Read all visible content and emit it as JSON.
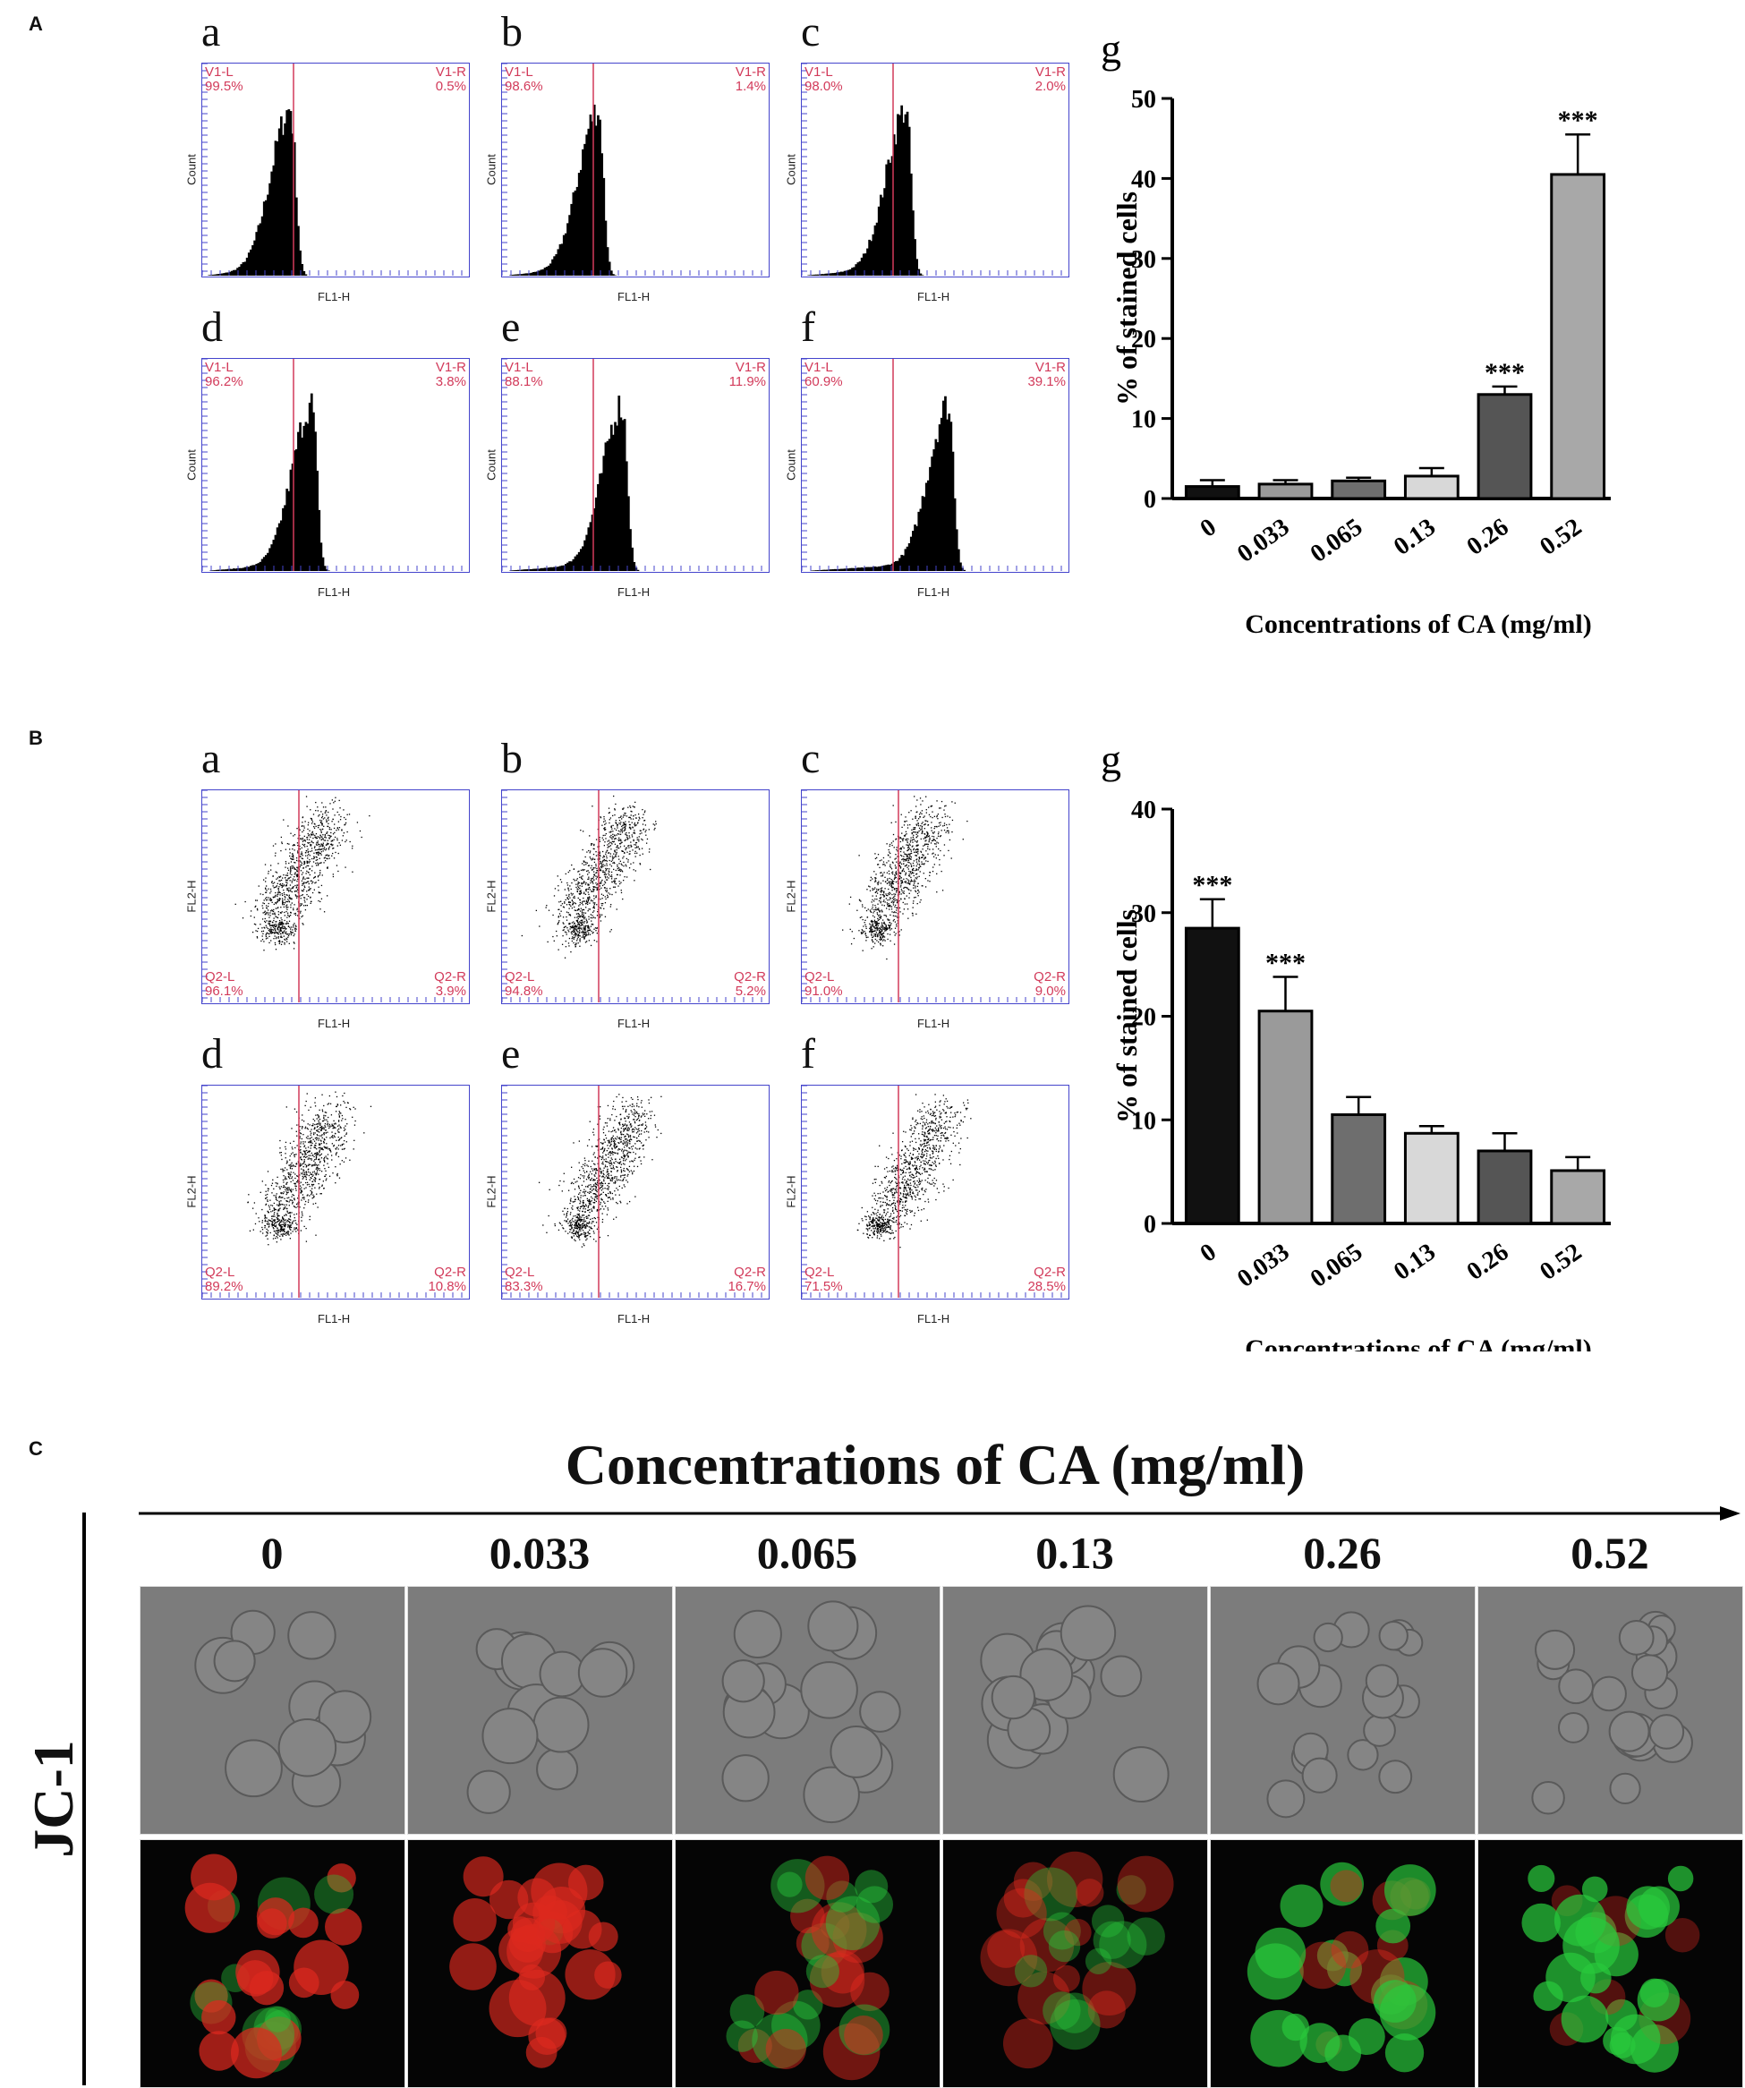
{
  "panels": {
    "A": "A",
    "B": "B",
    "C": "C"
  },
  "panelA": {
    "subplots": [
      {
        "letter": "a",
        "left_label": "V1-L",
        "left_pct": "99.5%",
        "right_label": "V1-R",
        "right_pct": "0.5%",
        "shift": 0.0
      },
      {
        "letter": "b",
        "left_label": "V1-L",
        "left_pct": "98.6%",
        "right_label": "V1-R",
        "right_pct": "1.4%",
        "shift": 0.03
      },
      {
        "letter": "c",
        "left_label": "V1-L",
        "left_pct": "98.0%",
        "right_label": "V1-R",
        "right_pct": "2.0%",
        "shift": 0.06
      },
      {
        "letter": "d",
        "left_label": "V1-L",
        "left_pct": "96.2%",
        "right_label": "V1-R",
        "right_pct": "3.8%",
        "shift": 0.08
      },
      {
        "letter": "e",
        "left_label": "V1-L",
        "left_pct": "88.1%",
        "right_label": "V1-R",
        "right_pct": "11.9%",
        "shift": 0.12
      },
      {
        "letter": "f",
        "left_label": "V1-L",
        "left_pct": "60.9%",
        "right_label": "V1-R",
        "right_pct": "39.1%",
        "shift": 0.22
      }
    ],
    "ylabel": "Count",
    "xlabel": "FL1-H"
  },
  "panelB": {
    "subplots": [
      {
        "letter": "a",
        "left_label": "Q2-L",
        "left_pct": "96.1%",
        "right_label": "Q2-R",
        "right_pct": "3.9%"
      },
      {
        "letter": "b",
        "left_label": "Q2-L",
        "left_pct": "94.8%",
        "right_label": "Q2-R",
        "right_pct": "5.2%"
      },
      {
        "letter": "c",
        "left_label": "Q2-L",
        "left_pct": "91.0%",
        "right_label": "Q2-R",
        "right_pct": "9.0%"
      },
      {
        "letter": "d",
        "left_label": "Q2-L",
        "left_pct": "89.2%",
        "right_label": "Q2-R",
        "right_pct": "10.8%"
      },
      {
        "letter": "e",
        "left_label": "Q2-L",
        "left_pct": "83.3%",
        "right_label": "Q2-R",
        "right_pct": "16.7%"
      },
      {
        "letter": "f",
        "left_label": "Q2-L",
        "left_pct": "71.5%",
        "right_label": "Q2-R",
        "right_pct": "28.5%"
      }
    ],
    "ylabel": "FL2-H",
    "xlabel": "FL1-H"
  },
  "chart_data": [
    {
      "type": "bar",
      "panel_letter": "g",
      "categories": [
        "0",
        "0.033",
        "0.065",
        "0.13",
        "0.26",
        "0.52"
      ],
      "values": [
        1.5,
        1.8,
        2.2,
        2.8,
        13.0,
        40.5
      ],
      "errors": [
        0.8,
        0.5,
        0.4,
        1.0,
        1.0,
        5.0
      ],
      "significance": [
        "",
        "",
        "",
        "",
        "***",
        "***"
      ],
      "bar_colors": [
        "#111111",
        "#9a9a9a",
        "#6e6e6e",
        "#d8d8d8",
        "#555555",
        "#a8a8a8"
      ],
      "ylabel": "% of stained cells",
      "xlabel": "Concentrations of CA (mg/ml)",
      "ylim": [
        0,
        50
      ],
      "yticks": [
        0,
        10,
        20,
        30,
        40,
        50
      ]
    },
    {
      "type": "bar",
      "panel_letter": "g",
      "categories": [
        "0",
        "0.033",
        "0.065",
        "0.13",
        "0.26",
        "0.52"
      ],
      "values": [
        28.5,
        20.5,
        10.5,
        8.7,
        7.0,
        5.1
      ],
      "errors": [
        2.8,
        3.3,
        1.7,
        0.7,
        1.7,
        1.3
      ],
      "significance": [
        "***",
        "***",
        "",
        "",
        "",
        ""
      ],
      "bar_colors": [
        "#111111",
        "#9a9a9a",
        "#6e6e6e",
        "#d8d8d8",
        "#555555",
        "#a8a8a8"
      ],
      "ylabel": "% of stained cells",
      "xlabel": "Concentrations of CA (mg/ml)",
      "ylim": [
        0,
        40
      ],
      "yticks": [
        0,
        10,
        20,
        30,
        40
      ]
    }
  ],
  "panelC": {
    "title": "Concentrations of CA (mg/ml)",
    "row_label": "JC-1",
    "concentrations": [
      "0",
      "0.033",
      "0.065",
      "0.13",
      "0.26",
      "0.52"
    ],
    "fluor": [
      {
        "red": 0.85,
        "green": 0.25
      },
      {
        "red": 0.75,
        "green": 0.05
      },
      {
        "red": 0.45,
        "green": 0.35
      },
      {
        "red": 0.35,
        "green": 0.25
      },
      {
        "red": 0.35,
        "green": 0.8
      },
      {
        "red": 0.2,
        "green": 0.85
      }
    ]
  }
}
